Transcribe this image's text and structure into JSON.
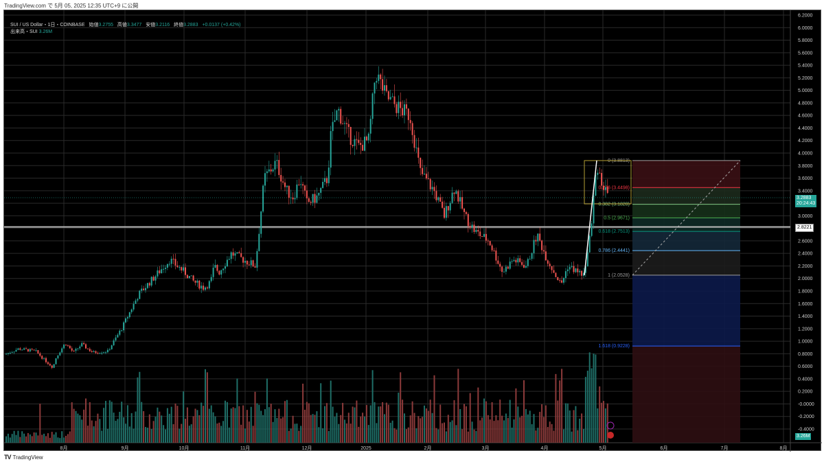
{
  "caption": "TradingView.com で 5月 05, 2025 12:35 UTC+9 に公開",
  "legend": {
    "symbol": "SUI / US Dollar・1日・COINBASE",
    "open_label": "始値",
    "open": "3.2755",
    "high_label": "高値",
    "high": "3.3477",
    "low_label": "安値",
    "low": "3.2116",
    "close_label": "終値",
    "close": "3.2883",
    "change": "+0.0137 (+0.42%)",
    "volume_label": "出来高・SUI",
    "volume": "3.26M"
  },
  "price_axis": {
    "ticks": [
      "6.2000",
      "6.0000",
      "5.8000",
      "5.6000",
      "5.4000",
      "5.2000",
      "5.0000",
      "4.8000",
      "4.6000",
      "4.4000",
      "4.2000",
      "4.0000",
      "3.8000",
      "3.6000",
      "3.4000",
      "3.0000",
      "2.6000",
      "2.4000",
      "2.2000",
      "2.0000",
      "1.8000",
      "1.6000",
      "1.4000",
      "1.2000",
      "1.0000",
      "0.8000",
      "0.6000",
      "0.4000",
      "0.2000",
      "-0.0000",
      "-0.2000",
      "-0.4000"
    ],
    "current_price": "3.2883",
    "countdown": "20:24:43",
    "hline_price": "2.8221",
    "volume_tag": "3.26M"
  },
  "time_axis": {
    "labels": [
      "8月",
      "9月",
      "10月",
      "11月",
      "12月",
      "2025",
      "2月",
      "3月",
      "4月",
      "5月",
      "6月",
      "7月",
      "8月"
    ]
  },
  "fib": {
    "levels": [
      {
        "label": "0 (3.8813)",
        "price": 3.8813,
        "color": "#9e9e9e",
        "fill": "#3a1014"
      },
      {
        "label": "0.236 (3.4498)",
        "price": 3.4498,
        "color": "#f23645",
        "fill": "#1c2a1c"
      },
      {
        "label": "0.382 (3.1828)",
        "price": 3.1828,
        "color": "#81c784",
        "fill": "#16301a"
      },
      {
        "label": "0.5 (2.9671)",
        "price": 2.9671,
        "color": "#4caf50",
        "fill": "#0e2a26"
      },
      {
        "label": "0.618 (2.7513)",
        "price": 2.7513,
        "color": "#089981",
        "fill": "#142838"
      },
      {
        "label": "0.786 (2.4441)",
        "price": 2.4441,
        "color": "#64b5f6",
        "fill": "#1c1c1c"
      },
      {
        "label": "1 (2.0528)",
        "price": 2.0528,
        "color": "#9e9e9e",
        "fill": "#0c1a4a"
      },
      {
        "label": "1.618 (0.9228)",
        "price": 0.9228,
        "color": "#2962ff",
        "fill": "#2e0e12"
      }
    ]
  },
  "colors": {
    "up": "#26a69a",
    "down": "#ef5350",
    "vol_up": "#1f6f68",
    "vol_down": "#8c3a3a",
    "grid": "#2a2a2a",
    "bg": "#000000"
  },
  "footer": {
    "brand": "TradingView"
  }
}
